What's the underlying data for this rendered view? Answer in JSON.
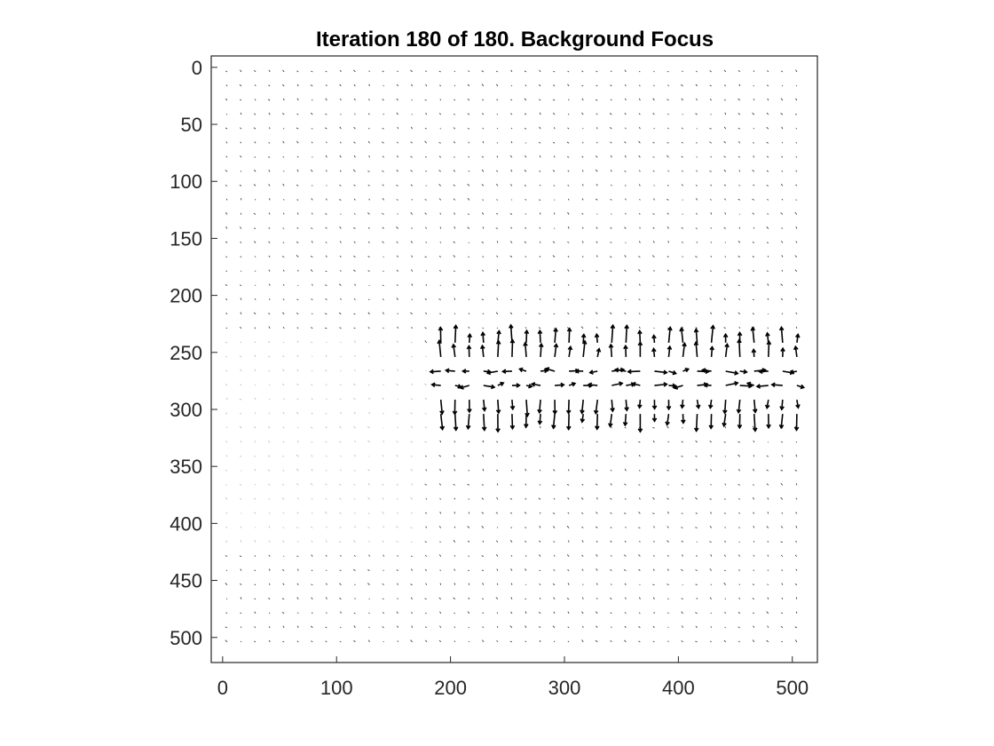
{
  "chart_data": {
    "type": "quiver",
    "title": "Iteration 180 of 180. Background Focus",
    "xlabel": "",
    "ylabel": "",
    "xlim": [
      -10,
      522
    ],
    "ylim": [
      522,
      -10
    ],
    "y_direction": "reversed",
    "x_ticks": [
      "0",
      "100",
      "200",
      "300",
      "400",
      "500"
    ],
    "y_ticks": [
      "0",
      "50",
      "100",
      "150",
      "200",
      "250",
      "300",
      "350",
      "400",
      "450",
      "500"
    ],
    "grid": false,
    "legend": "none",
    "vector_field": {
      "x_start": 4,
      "x_step": 12.5,
      "x_count": 41,
      "y_start": 4,
      "y_step": 12.5,
      "y_count": 41,
      "dominant_region": {
        "x_range": [
          190,
          510
        ],
        "y_range": [
          230,
          315
        ]
      },
      "upper_band_direction": "up",
      "middle_band_direction": "horizontal",
      "lower_band_direction": "down",
      "background_direction": "mostly up/left, very small magnitude"
    },
    "colors": {
      "arrow": "#000000",
      "axis": "#262626",
      "background": "#ffffff"
    }
  }
}
